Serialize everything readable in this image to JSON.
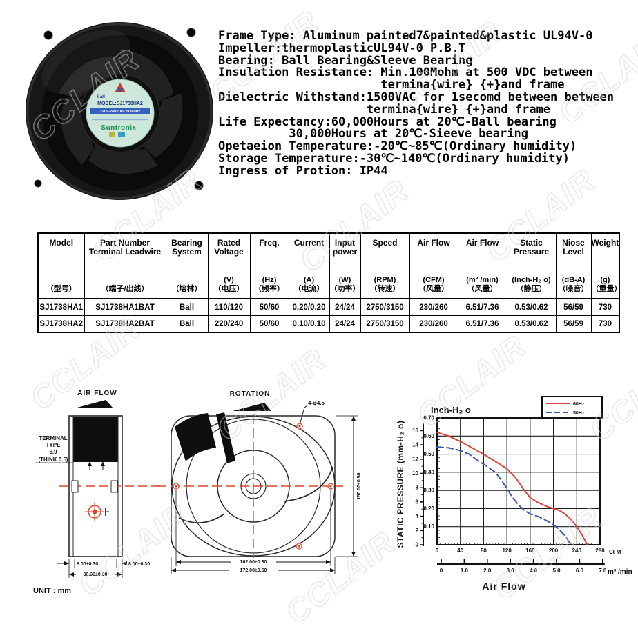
{
  "watermark": {
    "text": "CCLAIR"
  },
  "product": {
    "photo": {
      "hub_top": "Ball",
      "hub_model": "MODEL:SJ1738HA2",
      "hub_volt": "220V-240V AC 50/60Hz",
      "hub_brand": "Suntronix"
    }
  },
  "specs": {
    "lines": [
      "Frame Type: Aluminum painted7&painted&plastic UL94V-0",
      "Impeller:thermoplasticUL94V-0 P.B.T",
      "Bearing: Ball Bearing&Sleeve Bearing",
      "Insulation Resistance: Min.100Mohm at 500 VDC between",
      "                       termina{wire} {+}and frame",
      "Dielectric Withstand:1500VAC for 1secomd between between",
      "                     termina{wire} {+}and frame",
      "Life Expectancy:60,000Hours at 20℃-Ball bearing",
      "          30,000Hours at 20℃-Sieeve bearing",
      "Opetaeion Temperature:-20℃~85℃(Ordinary humidity)",
      "Storage Temperature:-30℃~140℃(Ordinary humidity)",
      "Ingress of Protion: IP44"
    ]
  },
  "table": {
    "columns": [
      {
        "en": "Model",
        "unit": "",
        "cn": "（型号）"
      },
      {
        "en": "Part Number Terminal Leadwire",
        "unit": "",
        "cn": "（端子/出线）"
      },
      {
        "en": "Bearing System",
        "unit": "",
        "cn": "（培林）"
      },
      {
        "en": "Rated Voltage",
        "unit": "(V)",
        "cn": "（电压）"
      },
      {
        "en": "Freq.",
        "unit": "(Hz)",
        "cn": "（频率）"
      },
      {
        "en": "Current",
        "unit": "(A)",
        "cn": "（电流）"
      },
      {
        "en": "Input power",
        "unit": "(W)",
        "cn": "（功率）"
      },
      {
        "en": "Speed",
        "unit": "(RPM)",
        "cn": "（转速）"
      },
      {
        "en": "Air Flow",
        "unit": "(CFM)",
        "cn": "（风量）"
      },
      {
        "en": "Air Flow",
        "unit": "(m³ /min)",
        "cn": "（风量）"
      },
      {
        "en": "Static Pressure",
        "unit": "(Inch-H₂ o)",
        "cn": "（静压）"
      },
      {
        "en": "Niose Level",
        "unit": "(dB-A)",
        "cn": "（噪音）"
      },
      {
        "en": "Weight",
        "unit": "(g)",
        "cn": "（重量）"
      }
    ],
    "rows": [
      [
        "SJ1738HA1",
        "SJ1738HA1BAT",
        "Ball",
        "110/120",
        "50/60",
        "0.20/0.20",
        "24/24",
        "2750/3150",
        "230/260",
        "6.51/7.36",
        "0.53/0.62",
        "56/59",
        "730"
      ],
      [
        "SJ1738HA2",
        "SJ1738HA2BAT",
        "Ball",
        "220/240",
        "50/60",
        "0.10/0.10",
        "24/24",
        "2750/3150",
        "230/260",
        "6.51/7.36",
        "0.53/0.62",
        "56/59",
        "730"
      ]
    ]
  },
  "drawings": {
    "side_view": {
      "air_flow_label": "AIR FLOW",
      "terminal_lines": [
        "TERMINAL",
        "TYPE",
        "6.9",
        "(THINK 0.5)"
      ],
      "dim_left": "8.00±0.30",
      "dim_right": "8.00±0.30",
      "dim_width": "38.00±0.30",
      "unit_label": "UNIT : mm"
    },
    "front_view": {
      "rotation_label": "ROTATION",
      "holes_callout": "4-φ4.5",
      "dim_inner": "162.00±0.30",
      "dim_outer": "172.00±0.50",
      "dim_height": "150.00±0.50"
    }
  },
  "chart_data": {
    "type": "line",
    "title": "Inch-H₂ o",
    "ylabel": "STATIC PRESSURE (mm-H₂ o)",
    "xlabel": "Air Flow",
    "x_unit_primary": "CFM",
    "x_unit_secondary": "m³ /min",
    "xlim_cfm": [
      0,
      280
    ],
    "ylim_inch": [
      0,
      0.7
    ],
    "x_ticks_cfm": [
      0,
      40,
      80,
      120,
      160,
      200,
      240,
      280
    ],
    "x_ticks_m3min": [
      "0",
      "1.0",
      "2.0",
      "3.0",
      "4.0",
      "5.0",
      "6.0",
      "7.0"
    ],
    "y_ticks_inch": [
      "0.10",
      "0.20",
      "0.30",
      "0.40",
      "0.50",
      "0.60",
      "0.70"
    ],
    "y_ticks_mm": [
      0,
      2,
      4,
      6,
      8,
      10,
      12,
      14,
      16
    ],
    "grid": true,
    "legend_position": "top-right",
    "series": [
      {
        "name": "60Hz",
        "color": "#d9453a",
        "style": "solid",
        "points_cfm_inch": [
          [
            0,
            0.62
          ],
          [
            20,
            0.6
          ],
          [
            40,
            0.57
          ],
          [
            60,
            0.535
          ],
          [
            80,
            0.5
          ],
          [
            100,
            0.46
          ],
          [
            120,
            0.42
          ],
          [
            135,
            0.37
          ],
          [
            150,
            0.3
          ],
          [
            160,
            0.26
          ],
          [
            175,
            0.23
          ],
          [
            190,
            0.21
          ],
          [
            200,
            0.2
          ],
          [
            210,
            0.19
          ],
          [
            220,
            0.17
          ],
          [
            230,
            0.14
          ],
          [
            240,
            0.1
          ],
          [
            250,
            0.05
          ],
          [
            258,
            0.0
          ]
        ]
      },
      {
        "name": "50Hz",
        "color": "#3a57ad",
        "style": "dashed",
        "points_cfm_inch": [
          [
            0,
            0.54
          ],
          [
            20,
            0.535
          ],
          [
            40,
            0.52
          ],
          [
            55,
            0.5
          ],
          [
            70,
            0.465
          ],
          [
            85,
            0.435
          ],
          [
            100,
            0.4
          ],
          [
            110,
            0.36
          ],
          [
            120,
            0.31
          ],
          [
            130,
            0.26
          ],
          [
            140,
            0.22
          ],
          [
            150,
            0.19
          ],
          [
            160,
            0.17
          ],
          [
            175,
            0.155
          ],
          [
            190,
            0.13
          ],
          [
            200,
            0.11
          ],
          [
            210,
            0.085
          ],
          [
            220,
            0.05
          ],
          [
            230,
            0.0
          ]
        ]
      }
    ]
  }
}
